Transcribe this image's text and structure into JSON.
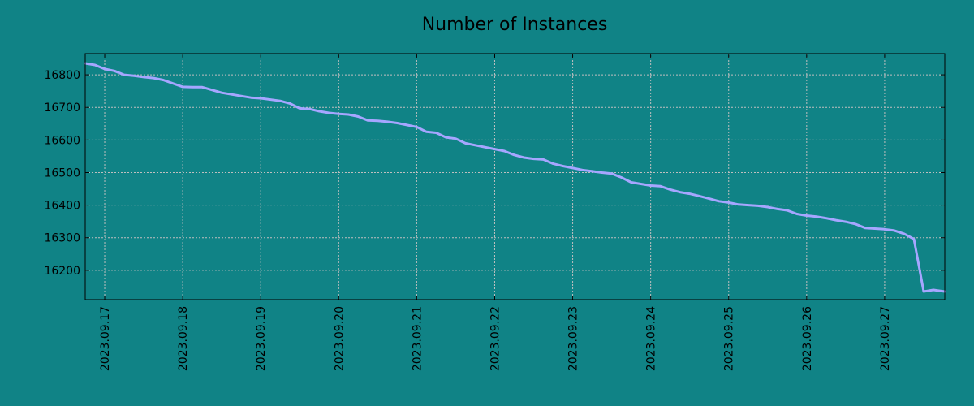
{
  "chart_data": {
    "type": "line",
    "title": "Number of Instances",
    "xlabel": "",
    "ylabel": "",
    "x_range": [
      "2023-09-16T18:00",
      "2023-09-27T18:30"
    ],
    "ylim": [
      16110,
      16865
    ],
    "x_ticks": [
      "2023.09.17",
      "2023.09.18",
      "2023.09.19",
      "2023.09.20",
      "2023.09.21",
      "2023.09.22",
      "2023.09.23",
      "2023.09.24",
      "2023.09.25",
      "2023.09.26",
      "2023.09.27"
    ],
    "y_ticks": [
      "16200",
      "16300",
      "16400",
      "16500",
      "16600",
      "16700",
      "16800"
    ],
    "grid": true,
    "legend": "none",
    "colors": {
      "background": "#108386",
      "line": "#a6a6ff",
      "grid": "#bfbfbf",
      "axes": "#000000"
    },
    "series": [
      {
        "x": [
          "2023-09-16T18:00",
          "2023-09-16T21:00",
          "2023-09-17T00:00",
          "2023-09-17T03:00",
          "2023-09-17T06:00",
          "2023-09-17T09:00",
          "2023-09-17T12:00",
          "2023-09-17T15:00",
          "2023-09-17T18:00",
          "2023-09-18T00:00",
          "2023-09-18T03:00",
          "2023-09-18T06:00",
          "2023-09-18T12:00",
          "2023-09-18T18:00",
          "2023-09-18T21:00",
          "2023-09-19T00:00",
          "2023-09-19T06:00",
          "2023-09-19T09:00",
          "2023-09-19T12:00",
          "2023-09-19T15:00",
          "2023-09-19T18:00",
          "2023-09-19T21:00",
          "2023-09-20T00:00",
          "2023-09-20T03:00",
          "2023-09-20T06:00",
          "2023-09-20T09:00",
          "2023-09-20T12:00",
          "2023-09-20T15:00",
          "2023-09-20T18:00",
          "2023-09-21T00:00",
          "2023-09-21T03:00",
          "2023-09-21T06:00",
          "2023-09-21T09:00",
          "2023-09-21T12:00",
          "2023-09-21T15:00",
          "2023-09-21T18:00",
          "2023-09-22T00:00",
          "2023-09-22T03:00",
          "2023-09-22T06:00",
          "2023-09-22T09:00",
          "2023-09-22T12:00",
          "2023-09-22T15:00",
          "2023-09-22T18:00",
          "2023-09-22T21:00",
          "2023-09-23T00:00",
          "2023-09-23T03:00",
          "2023-09-23T06:00",
          "2023-09-23T09:00",
          "2023-09-23T12:00",
          "2023-09-23T15:00",
          "2023-09-23T18:00",
          "2023-09-24T00:00",
          "2023-09-24T03:00",
          "2023-09-24T06:00",
          "2023-09-24T09:00",
          "2023-09-24T12:00",
          "2023-09-24T15:00",
          "2023-09-24T18:00",
          "2023-09-24T21:00",
          "2023-09-25T00:00",
          "2023-09-25T03:00",
          "2023-09-25T06:00",
          "2023-09-25T09:00",
          "2023-09-25T12:00",
          "2023-09-25T15:00",
          "2023-09-25T18:00",
          "2023-09-25T21:00",
          "2023-09-26T00:00",
          "2023-09-26T03:00",
          "2023-09-26T06:00",
          "2023-09-26T09:00",
          "2023-09-26T12:00",
          "2023-09-26T15:00",
          "2023-09-26T18:00",
          "2023-09-26T21:00",
          "2023-09-27T00:00",
          "2023-09-27T03:00",
          "2023-09-27T06:00",
          "2023-09-27T09:00",
          "2023-09-27T12:00",
          "2023-09-27T15:00",
          "2023-09-27T18:30"
        ],
        "y": [
          16835,
          16830,
          16818,
          16812,
          16800,
          16797,
          16793,
          16790,
          16784,
          16763,
          16762,
          16762,
          16745,
          16735,
          16730,
          16728,
          16720,
          16712,
          16697,
          16695,
          16688,
          16683,
          16680,
          16678,
          16672,
          16660,
          16659,
          16656,
          16652,
          16640,
          16625,
          16622,
          16608,
          16604,
          16590,
          16584,
          16572,
          16566,
          16554,
          16546,
          16542,
          16540,
          16527,
          16520,
          16514,
          16508,
          16504,
          16500,
          16497,
          16485,
          16470,
          16460,
          16458,
          16448,
          16440,
          16435,
          16428,
          16420,
          16412,
          16408,
          16402,
          16400,
          16398,
          16394,
          16388,
          16384,
          16373,
          16368,
          16365,
          16360,
          16354,
          16349,
          16342,
          16330,
          16328,
          16326,
          16322,
          16312,
          16296,
          16135,
          16140,
          16135
        ]
      }
    ]
  }
}
